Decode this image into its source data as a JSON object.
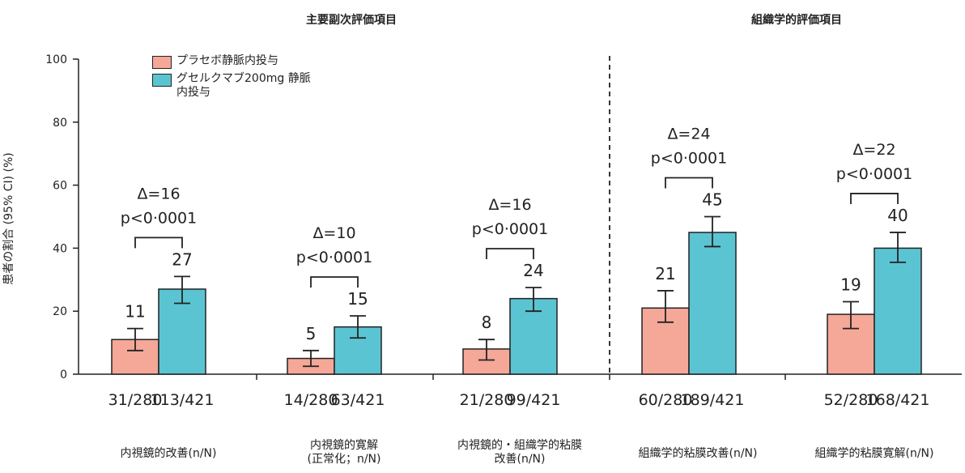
{
  "section_titles": [
    "主要副次評価項目",
    "組織学的評価項目"
  ],
  "chart_data": {
    "type": "bar",
    "ylabel": "患者の割合 (95% CI) (%)",
    "ylim": [
      0,
      100
    ],
    "yticks": [
      0,
      20,
      40,
      60,
      80,
      100
    ],
    "grid": false,
    "legend_placement": "top-left",
    "colors": {
      "placebo": "#f5a898",
      "guselkumab": "#5bc4d2",
      "axis": "#222222"
    },
    "series": [
      {
        "name": "プラセボ静脈内投与",
        "values": [
          11,
          5,
          8,
          21,
          19
        ],
        "ci_low": [
          7.5,
          2.5,
          4.5,
          16.5,
          14.5
        ],
        "ci_high": [
          14.5,
          7.5,
          11,
          26.5,
          23
        ],
        "counts": [
          "31/280",
          "14/280",
          "21/280",
          "60/280",
          "52/280"
        ]
      },
      {
        "name": "グセルクマブ200mg 静脈\n内投与",
        "values": [
          27,
          15,
          24,
          45,
          40
        ],
        "ci_low": [
          22.5,
          11.5,
          20,
          40.5,
          35.5
        ],
        "ci_high": [
          31,
          18.5,
          27.5,
          50,
          45
        ],
        "counts": [
          "113/421",
          "63/421",
          "99/421",
          "189/421",
          "168/421"
        ]
      }
    ],
    "categories": [
      "内視鏡的改善(n/N)",
      "内視鏡的寛解\n(正常化；n/N)",
      "内視鏡的・組織学的粘膜\n改善(n/N)",
      "組織学的粘膜改善(n/N)",
      "組織学的粘膜寛解(n/N)"
    ],
    "bar_labels": [
      [
        "11",
        "27"
      ],
      [
        "5",
        "15"
      ],
      [
        "8",
        "24"
      ],
      [
        "21",
        "45"
      ],
      [
        "19",
        "40"
      ]
    ],
    "annotations": [
      {
        "delta": "Δ=16",
        "p": "p<0·0001"
      },
      {
        "delta": "Δ=10",
        "p": "p<0·0001"
      },
      {
        "delta": "Δ=16",
        "p": "p<0·0001"
      },
      {
        "delta": "Δ=24",
        "p": "p<0·0001"
      },
      {
        "delta": "Δ=22",
        "p": "p<0·0001"
      }
    ]
  }
}
